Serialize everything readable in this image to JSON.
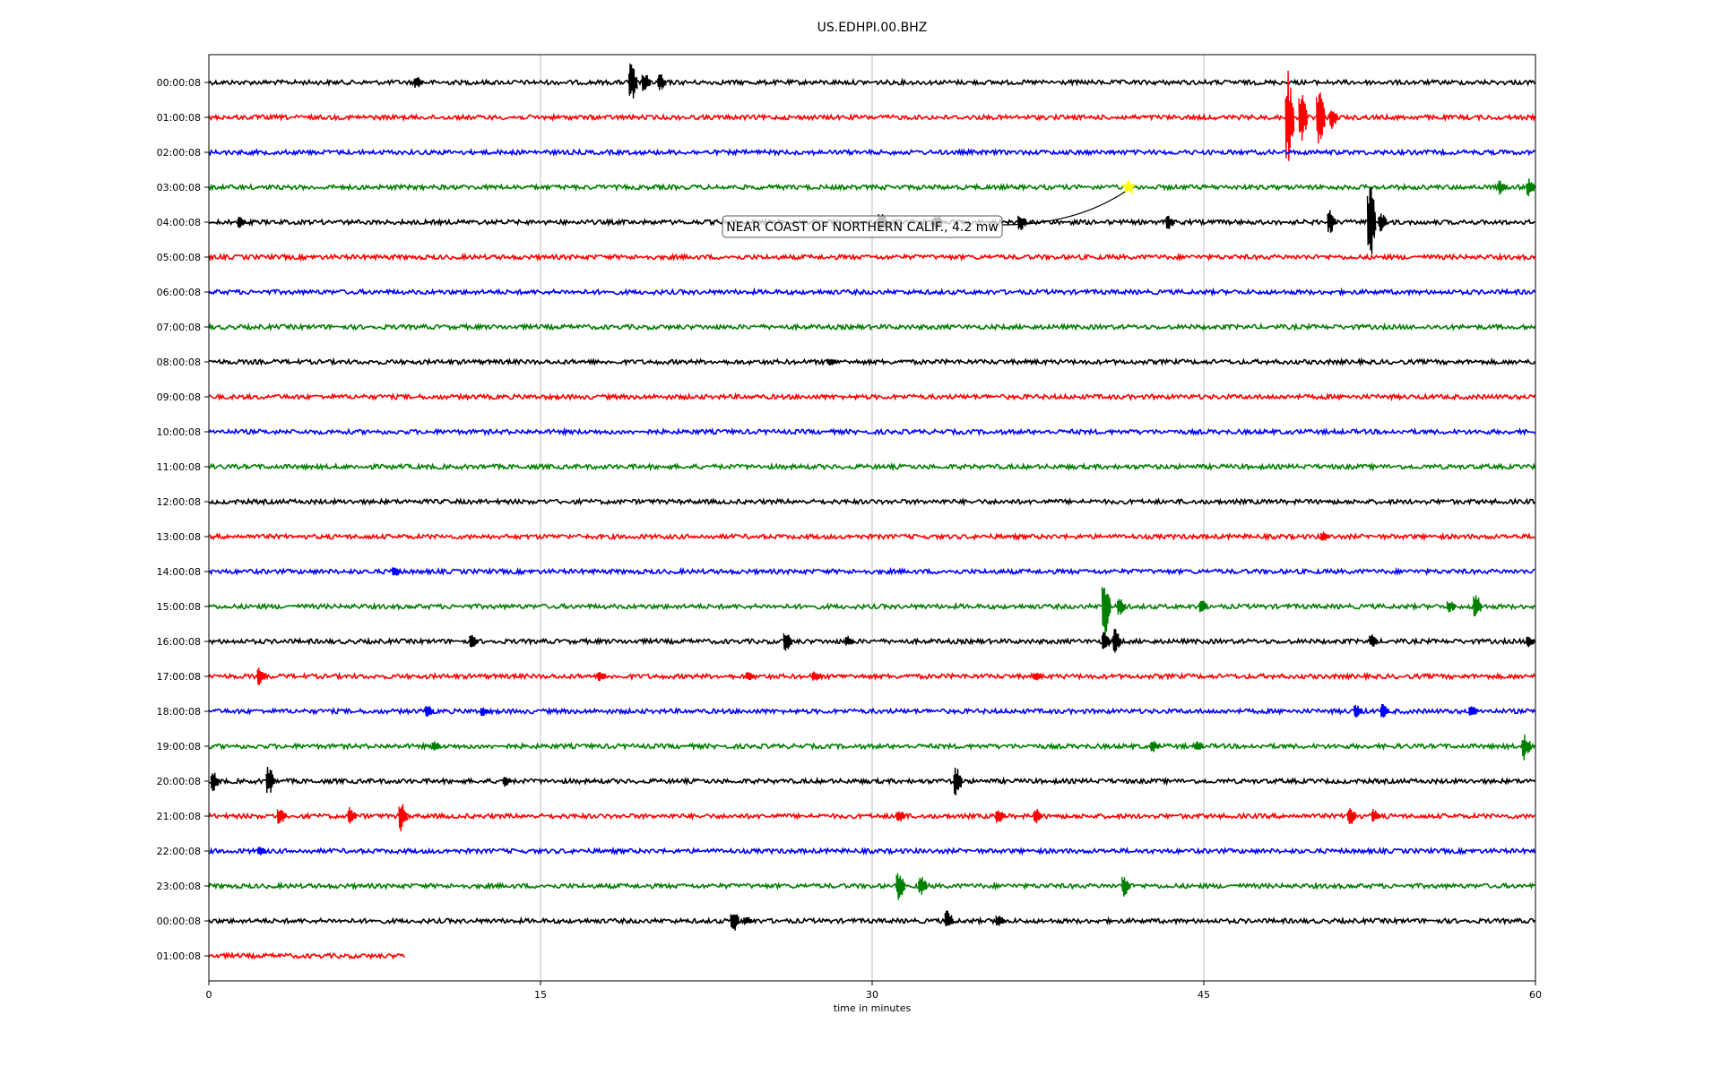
{
  "chart_data": {
    "type": "line",
    "title": "US.EDHPI.00.BHZ",
    "xlabel": "time in minutes",
    "ylabel": "",
    "xlim": [
      0,
      60
    ],
    "x_ticks": [
      "0",
      "15",
      "30",
      "45",
      "60"
    ],
    "x_tick_values": [
      0,
      15,
      30,
      45,
      60
    ],
    "grid": "vertical",
    "line_colors": [
      "#000000",
      "#ff0000",
      "#0000ff",
      "#008000"
    ],
    "rows": [
      {
        "label": "00:00:08",
        "end": 60,
        "events": [
          {
            "t": 9.5,
            "amp": 0.35
          },
          {
            "t": 19.2,
            "amp": 1.2
          },
          {
            "t": 19.8,
            "amp": 0.6
          },
          {
            "t": 20.5,
            "amp": 0.55
          }
        ]
      },
      {
        "label": "01:00:08",
        "end": 60,
        "events": [
          {
            "t": 48.9,
            "amp": 2.6
          },
          {
            "t": 49.5,
            "amp": 1.5
          },
          {
            "t": 50.3,
            "amp": 1.8
          },
          {
            "t": 50.9,
            "amp": 0.6
          }
        ]
      },
      {
        "label": "02:00:08",
        "end": 60,
        "events": []
      },
      {
        "label": "03:00:08",
        "end": 60,
        "events": [
          {
            "t": 58.5,
            "amp": 0.4
          },
          {
            "t": 59.8,
            "amp": 0.5
          }
        ]
      },
      {
        "label": "04:00:08",
        "end": 60,
        "events": [
          {
            "t": 1.5,
            "amp": 0.3
          },
          {
            "t": 30.5,
            "amp": 0.6
          },
          {
            "t": 33.0,
            "amp": 0.5
          },
          {
            "t": 36.8,
            "amp": 0.5
          },
          {
            "t": 43.5,
            "amp": 0.4
          },
          {
            "t": 50.8,
            "amp": 0.7
          },
          {
            "t": 52.6,
            "amp": 2.5
          },
          {
            "t": 53.1,
            "amp": 0.6
          }
        ]
      },
      {
        "label": "05:00:08",
        "end": 60,
        "events": []
      },
      {
        "label": "06:00:08",
        "end": 60,
        "events": []
      },
      {
        "label": "07:00:08",
        "end": 60,
        "events": []
      },
      {
        "label": "08:00:08",
        "end": 60,
        "events": [
          {
            "t": 28.2,
            "amp": 0.25
          }
        ]
      },
      {
        "label": "09:00:08",
        "end": 60,
        "events": []
      },
      {
        "label": "10:00:08",
        "end": 60,
        "events": []
      },
      {
        "label": "11:00:08",
        "end": 60,
        "events": []
      },
      {
        "label": "12:00:08",
        "end": 60,
        "events": []
      },
      {
        "label": "13:00:08",
        "end": 60,
        "events": [
          {
            "t": 50.5,
            "amp": 0.3
          }
        ]
      },
      {
        "label": "14:00:08",
        "end": 60,
        "events": [
          {
            "t": 8.5,
            "amp": 0.35
          }
        ]
      },
      {
        "label": "15:00:08",
        "end": 60,
        "events": [
          {
            "t": 40.6,
            "amp": 1.8
          },
          {
            "t": 41.3,
            "amp": 0.5
          },
          {
            "t": 45.0,
            "amp": 0.4
          },
          {
            "t": 56.2,
            "amp": 0.4
          },
          {
            "t": 57.4,
            "amp": 0.7
          }
        ]
      },
      {
        "label": "16:00:08",
        "end": 60,
        "events": [
          {
            "t": 12.0,
            "amp": 0.4
          },
          {
            "t": 26.2,
            "amp": 0.6
          },
          {
            "t": 29.0,
            "amp": 0.3
          },
          {
            "t": 40.6,
            "amp": 0.6
          },
          {
            "t": 41.1,
            "amp": 0.7
          },
          {
            "t": 52.7,
            "amp": 0.4
          },
          {
            "t": 59.8,
            "amp": 0.3
          }
        ]
      },
      {
        "label": "17:00:08",
        "end": 60,
        "events": [
          {
            "t": 2.4,
            "amp": 0.5
          },
          {
            "t": 17.8,
            "amp": 0.3
          },
          {
            "t": 24.5,
            "amp": 0.25
          },
          {
            "t": 27.5,
            "amp": 0.3
          },
          {
            "t": 37.5,
            "amp": 0.25
          }
        ]
      },
      {
        "label": "18:00:08",
        "end": 60,
        "events": [
          {
            "t": 10.0,
            "amp": 0.35
          },
          {
            "t": 12.5,
            "amp": 0.3
          },
          {
            "t": 52.0,
            "amp": 0.4
          },
          {
            "t": 53.2,
            "amp": 0.4
          },
          {
            "t": 57.2,
            "amp": 0.35
          }
        ]
      },
      {
        "label": "19:00:08",
        "end": 60,
        "events": [
          {
            "t": 10.3,
            "amp": 0.3
          },
          {
            "t": 42.8,
            "amp": 0.35
          },
          {
            "t": 44.8,
            "amp": 0.3
          },
          {
            "t": 59.6,
            "amp": 0.8
          }
        ]
      },
      {
        "label": "20:00:08",
        "end": 60,
        "events": [
          {
            "t": 0.3,
            "amp": 0.6
          },
          {
            "t": 2.8,
            "amp": 0.9
          },
          {
            "t": 13.5,
            "amp": 0.3
          },
          {
            "t": 33.9,
            "amp": 0.8
          }
        ]
      },
      {
        "label": "21:00:08",
        "end": 60,
        "events": [
          {
            "t": 3.3,
            "amp": 0.5
          },
          {
            "t": 6.5,
            "amp": 0.5
          },
          {
            "t": 8.8,
            "amp": 0.8
          },
          {
            "t": 31.3,
            "amp": 0.4
          },
          {
            "t": 35.8,
            "amp": 0.5
          },
          {
            "t": 37.5,
            "amp": 0.5
          },
          {
            "t": 51.7,
            "amp": 0.6
          },
          {
            "t": 52.8,
            "amp": 0.4
          }
        ]
      },
      {
        "label": "22:00:08",
        "end": 60,
        "events": [
          {
            "t": 2.4,
            "amp": 0.3
          }
        ]
      },
      {
        "label": "23:00:08",
        "end": 60,
        "events": [
          {
            "t": 31.3,
            "amp": 0.8
          },
          {
            "t": 32.3,
            "amp": 0.6
          },
          {
            "t": 41.5,
            "amp": 0.6
          }
        ]
      },
      {
        "label": "00:00:08",
        "end": 60,
        "events": [
          {
            "t": 23.8,
            "amp": 0.7
          },
          {
            "t": 24.4,
            "amp": 0.3
          },
          {
            "t": 33.5,
            "amp": 0.6
          },
          {
            "t": 35.8,
            "amp": 0.4
          }
        ]
      },
      {
        "label": "01:00:08",
        "end": 8.9,
        "events": []
      }
    ],
    "annotations": [
      {
        "text": "NEAR COAST OF NORTHERN CALIF., 4.2 mw",
        "row": 3,
        "t": 41.6,
        "marker": "star",
        "marker_color": "#ffff00"
      }
    ]
  }
}
